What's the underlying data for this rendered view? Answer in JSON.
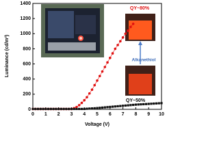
{
  "chart_data": {
    "type": "scatter-line",
    "xlabel": "Voltage (V)",
    "ylabel": "Luminance (cd/m²)",
    "xlim": [
      0,
      10
    ],
    "ylim": [
      0,
      1400
    ],
    "xticks": [
      0,
      1,
      2,
      3,
      4,
      5,
      6,
      7,
      8,
      9,
      10
    ],
    "yticks": [
      0,
      200,
      400,
      600,
      800,
      1000,
      1200,
      1400
    ],
    "annotations": [
      "QY~80%",
      "Alkanethiol",
      "QY~50%"
    ],
    "series": [
      {
        "color": "#e01010",
        "marker": "circle",
        "x": [
          0,
          0.2,
          0.4,
          0.6,
          0.8,
          1,
          1.2,
          1.4,
          1.6,
          1.8,
          2,
          2.2,
          2.4,
          2.6,
          2.8,
          3,
          3.2,
          3.4,
          3.6,
          3.8,
          4,
          4.2,
          4.4,
          4.6,
          4.8,
          5,
          5.2,
          5.4,
          5.6,
          5.8,
          6,
          6.2,
          6.4,
          6.6,
          6.8,
          7,
          7.2,
          7.4,
          7.6,
          7.8
        ],
        "values": [
          5,
          5,
          5,
          5,
          5,
          5,
          5,
          5,
          5,
          5,
          5,
          5,
          5,
          5,
          5,
          5,
          15,
          30,
          55,
          85,
          120,
          160,
          210,
          260,
          320,
          380,
          440,
          500,
          560,
          620,
          680,
          740,
          800,
          850,
          900,
          950,
          1000,
          1040,
          1090,
          1130
        ]
      },
      {
        "color": "#111111",
        "marker": "square",
        "x": [
          0,
          0.2,
          0.4,
          0.6,
          0.8,
          1,
          1.2,
          1.4,
          1.6,
          1.8,
          2,
          2.2,
          2.4,
          2.6,
          2.8,
          3,
          3.2,
          3.4,
          3.6,
          3.8,
          4,
          4.2,
          4.4,
          4.6,
          4.8,
          5,
          5.2,
          5.4,
          5.6,
          5.8,
          6,
          6.2,
          6.4,
          6.6,
          6.8,
          7,
          7.2,
          7.4,
          7.6,
          7.8,
          8,
          8.2,
          8.4,
          8.6,
          8.8,
          9,
          9.2,
          9.4,
          9.6,
          9.8,
          10
        ],
        "values": [
          5,
          5,
          5,
          5,
          5,
          5,
          5,
          5,
          5,
          5,
          5,
          5,
          5,
          5,
          5,
          5,
          5,
          5,
          5,
          5,
          5,
          8,
          10,
          12,
          14,
          17,
          20,
          23,
          26,
          29,
          32,
          35,
          38,
          41,
          44,
          47,
          50,
          53,
          56,
          59,
          62,
          64,
          66,
          68,
          70,
          72,
          74,
          76,
          78,
          80,
          82
        ]
      }
    ]
  }
}
